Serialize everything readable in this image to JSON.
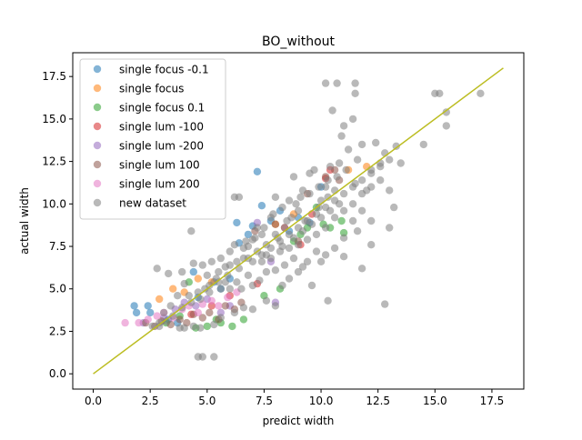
{
  "chart_data": {
    "type": "scatter",
    "title": "BO_without",
    "xlabel": "predict width",
    "ylabel": "actual width",
    "xlim": [
      -0.9,
      18.9
    ],
    "ylim": [
      -0.9,
      18.9
    ],
    "xticks": [
      0,
      2.5,
      5,
      7.5,
      10,
      12.5,
      15,
      17.5
    ],
    "xtick_labels": [
      "0.0",
      "2.5",
      "5.0",
      "7.5",
      "10.0",
      "12.5",
      "15.0",
      "17.5"
    ],
    "yticks": [
      0,
      2.5,
      5,
      7.5,
      10,
      12.5,
      15,
      17.5
    ],
    "ytick_labels": [
      "0.0",
      "2.5",
      "5.0",
      "7.5",
      "10.0",
      "12.5",
      "15.0",
      "17.5"
    ],
    "grid": false,
    "legend_position": "top-left",
    "reference_line": {
      "x": [
        0,
        18
      ],
      "y": [
        0,
        18
      ],
      "color": "#bcbd22"
    },
    "series": [
      {
        "name": "single focus -0.1",
        "color": "#1f77b4",
        "points": [
          [
            1.8,
            4.0
          ],
          [
            1.9,
            3.6
          ],
          [
            2.4,
            4.0
          ],
          [
            2.5,
            3.6
          ],
          [
            3.3,
            3.2
          ],
          [
            3.7,
            3.0
          ],
          [
            4.4,
            6.0
          ],
          [
            4.6,
            4.5
          ],
          [
            5.3,
            5.4
          ],
          [
            5.6,
            5.0
          ],
          [
            6.0,
            5.6
          ],
          [
            6.3,
            8.9
          ],
          [
            6.4,
            7.7
          ],
          [
            6.8,
            8.2
          ],
          [
            7.0,
            8.7
          ],
          [
            7.2,
            11.9
          ],
          [
            7.4,
            9.9
          ],
          [
            7.8,
            9.0
          ],
          [
            8.2,
            9.6
          ],
          [
            8.6,
            8.4
          ],
          [
            9.0,
            9.2
          ],
          [
            9.5,
            8.9
          ],
          [
            10.0,
            11.0
          ]
        ]
      },
      {
        "name": "single focus",
        "color": "#ff7f0e",
        "points": [
          [
            2.9,
            4.4
          ],
          [
            3.5,
            5.0
          ],
          [
            4.0,
            4.8
          ],
          [
            4.6,
            5.6
          ],
          [
            5.2,
            5.4
          ],
          [
            8.0,
            8.8
          ],
          [
            11.2,
            12.0
          ],
          [
            12.0,
            12.2
          ],
          [
            8.8,
            9.4
          ]
        ]
      },
      {
        "name": "single focus 0.1",
        "color": "#2ca02c",
        "points": [
          [
            3.2,
            3.0
          ],
          [
            3.8,
            3.4
          ],
          [
            4.2,
            5.4
          ],
          [
            4.5,
            2.7
          ],
          [
            5.0,
            2.8
          ],
          [
            5.4,
            3.2
          ],
          [
            5.6,
            3.0
          ],
          [
            6.1,
            2.8
          ],
          [
            6.6,
            3.2
          ],
          [
            7.5,
            4.6
          ],
          [
            8.2,
            5.0
          ],
          [
            9.1,
            8.2
          ],
          [
            9.4,
            8.6
          ],
          [
            9.8,
            9.8
          ],
          [
            10.1,
            8.8
          ],
          [
            10.4,
            8.6
          ],
          [
            10.9,
            9.0
          ],
          [
            11.0,
            8.3
          ],
          [
            8.8,
            7.8
          ]
        ]
      },
      {
        "name": "single lum -100",
        "color": "#d62728",
        "points": [
          [
            4.3,
            3.5
          ],
          [
            5.2,
            4.0
          ],
          [
            6.0,
            4.6
          ],
          [
            7.2,
            5.3
          ],
          [
            9.1,
            7.6
          ],
          [
            10.4,
            12.0
          ],
          [
            10.2,
            11.5
          ],
          [
            8.4,
            8.6
          ],
          [
            9.6,
            9.4
          ]
        ]
      },
      {
        "name": "single lum -200",
        "color": "#9467bd",
        "points": [
          [
            2.2,
            3.0
          ],
          [
            3.1,
            3.3
          ],
          [
            3.6,
            3.8
          ],
          [
            4.0,
            4.2
          ],
          [
            4.5,
            4.0
          ],
          [
            5.0,
            4.4
          ],
          [
            5.6,
            3.6
          ],
          [
            6.0,
            4.0
          ],
          [
            7.2,
            8.9
          ],
          [
            8.0,
            4.2
          ],
          [
            7.8,
            6.6
          ]
        ]
      },
      {
        "name": "single lum 100",
        "color": "#8c564b",
        "points": [
          [
            2.3,
            3.0
          ],
          [
            2.7,
            2.8
          ],
          [
            3.0,
            3.1
          ],
          [
            3.4,
            2.9
          ],
          [
            3.8,
            3.2
          ],
          [
            4.1,
            3.0
          ],
          [
            4.4,
            3.5
          ],
          [
            4.8,
            3.3
          ],
          [
            5.1,
            3.6
          ],
          [
            5.5,
            3.2
          ],
          [
            5.8,
            4.0
          ],
          [
            6.2,
            3.8
          ],
          [
            6.5,
            4.2
          ],
          [
            7.1,
            8.4
          ],
          [
            8.0,
            8.8
          ],
          [
            9.0,
            7.8
          ],
          [
            9.4,
            10.6
          ],
          [
            10.2,
            11.6
          ],
          [
            10.6,
            12.0
          ],
          [
            10.8,
            11.4
          ]
        ]
      },
      {
        "name": "single lum 200",
        "color": "#e377c2",
        "points": [
          [
            1.4,
            3.0
          ],
          [
            2.0,
            3.0
          ],
          [
            2.4,
            3.2
          ],
          [
            2.8,
            3.4
          ],
          [
            3.1,
            3.6
          ],
          [
            3.5,
            3.3
          ],
          [
            3.9,
            3.8
          ],
          [
            4.2,
            4.0
          ],
          [
            4.6,
            3.6
          ],
          [
            4.8,
            4.1
          ],
          [
            5.2,
            4.3
          ],
          [
            5.5,
            4.0
          ],
          [
            5.9,
            4.5
          ],
          [
            6.3,
            4.8
          ]
        ]
      },
      {
        "name": "new dataset",
        "color": "#7f7f7f",
        "points": [
          [
            4.6,
            1.0
          ],
          [
            4.8,
            1.0
          ],
          [
            5.3,
            1.0
          ],
          [
            2.8,
            6.2
          ],
          [
            3.3,
            5.9
          ],
          [
            3.9,
            6.0
          ],
          [
            4.3,
            8.4
          ],
          [
            4.4,
            6.5
          ],
          [
            4.8,
            6.4
          ],
          [
            5.0,
            5.8
          ],
          [
            5.2,
            6.6
          ],
          [
            5.5,
            6.0
          ],
          [
            5.8,
            6.3
          ],
          [
            6.0,
            7.2
          ],
          [
            6.2,
            10.4
          ],
          [
            6.4,
            10.4
          ],
          [
            6.6,
            6.8
          ],
          [
            6.8,
            7.5
          ],
          [
            7.0,
            7.9
          ],
          [
            7.2,
            8.6
          ],
          [
            7.4,
            8.2
          ],
          [
            7.6,
            7.0
          ],
          [
            7.8,
            9.2
          ],
          [
            8.0,
            10.4
          ],
          [
            8.1,
            8.0
          ],
          [
            8.3,
            7.5
          ],
          [
            8.5,
            9.0
          ],
          [
            8.6,
            10.2
          ],
          [
            8.8,
            11.6
          ],
          [
            9.0,
            9.6
          ],
          [
            9.2,
            10.8
          ],
          [
            9.3,
            9.0
          ],
          [
            9.5,
            11.8
          ],
          [
            9.7,
            12.0
          ],
          [
            9.9,
            9.8
          ],
          [
            10.0,
            10.2
          ],
          [
            10.2,
            11.0
          ],
          [
            10.3,
            10.4
          ],
          [
            10.4,
            12.2
          ],
          [
            10.5,
            15.5
          ],
          [
            10.6,
            10.8
          ],
          [
            10.8,
            12.4
          ],
          [
            10.9,
            14.0
          ],
          [
            11.0,
            14.6
          ],
          [
            11.2,
            13.2
          ],
          [
            11.4,
            15.0
          ],
          [
            11.5,
            11.2
          ],
          [
            11.6,
            12.6
          ],
          [
            11.8,
            13.5
          ],
          [
            12.0,
            10.8
          ],
          [
            12.2,
            12.0
          ],
          [
            12.4,
            13.6
          ],
          [
            12.6,
            12.4
          ],
          [
            12.8,
            13.0
          ],
          [
            13.0,
            8.6
          ],
          [
            13.2,
            9.8
          ],
          [
            13.3,
            13.4
          ],
          [
            13.5,
            12.4
          ],
          [
            13.0,
            10.8
          ],
          [
            14.5,
            13.5
          ],
          [
            15.0,
            16.5
          ],
          [
            15.2,
            16.5
          ],
          [
            15.5,
            15.4
          ],
          [
            15.5,
            14.6
          ],
          [
            17.0,
            16.5
          ],
          [
            10.2,
            17.1
          ],
          [
            10.7,
            17.1
          ],
          [
            11.5,
            17.1
          ],
          [
            11.5,
            16.5
          ],
          [
            12.8,
            4.1
          ],
          [
            10.3,
            4.3
          ],
          [
            11.0,
            6.9
          ],
          [
            11.8,
            6.2
          ],
          [
            12.2,
            7.6
          ],
          [
            11.6,
            8.4
          ],
          [
            9.6,
            5.2
          ],
          [
            10.0,
            6.6
          ],
          [
            9.2,
            6.3
          ],
          [
            8.8,
            6.8
          ],
          [
            8.4,
            6.4
          ],
          [
            8.0,
            6.1
          ],
          [
            7.6,
            6.0
          ],
          [
            7.3,
            5.5
          ],
          [
            7.0,
            5.2
          ],
          [
            6.8,
            5.8
          ],
          [
            6.5,
            5.0
          ],
          [
            6.3,
            5.4
          ],
          [
            6.0,
            5.0
          ],
          [
            5.8,
            5.4
          ],
          [
            5.6,
            5.0
          ],
          [
            5.4,
            5.6
          ],
          [
            5.1,
            5.2
          ],
          [
            4.9,
            5.0
          ],
          [
            4.6,
            4.8
          ],
          [
            4.2,
            4.6
          ],
          [
            4.0,
            5.3
          ],
          [
            3.7,
            4.6
          ],
          [
            3.4,
            4.0
          ],
          [
            3.1,
            3.6
          ],
          [
            2.9,
            2.8
          ],
          [
            3.8,
            2.7
          ],
          [
            4.0,
            2.7
          ],
          [
            4.4,
            2.8
          ],
          [
            4.7,
            2.7
          ],
          [
            5.3,
            2.9
          ],
          [
            5.6,
            3.3
          ],
          [
            6.2,
            3.6
          ],
          [
            6.6,
            3.9
          ],
          [
            7.0,
            3.8
          ],
          [
            7.6,
            4.3
          ],
          [
            8.0,
            4.0
          ],
          [
            8.3,
            5.2
          ],
          [
            8.6,
            5.6
          ],
          [
            9.0,
            6.0
          ],
          [
            9.4,
            6.6
          ],
          [
            9.8,
            7.2
          ],
          [
            10.2,
            7.0
          ],
          [
            10.6,
            7.4
          ],
          [
            11.0,
            8.0
          ],
          [
            11.4,
            9.0
          ],
          [
            11.8,
            9.6
          ],
          [
            12.2,
            9.0
          ],
          [
            7.4,
            6.6
          ],
          [
            7.8,
            6.8
          ],
          [
            8.2,
            7.2
          ],
          [
            8.6,
            7.4
          ],
          [
            9.0,
            7.6
          ],
          [
            9.4,
            7.9
          ],
          [
            9.8,
            8.2
          ],
          [
            10.2,
            8.6
          ],
          [
            10.6,
            9.2
          ],
          [
            11.0,
            9.6
          ],
          [
            11.4,
            10.0
          ],
          [
            11.8,
            10.6
          ],
          [
            12.2,
            11.0
          ],
          [
            12.6,
            11.4
          ],
          [
            8.4,
            8.6
          ],
          [
            8.8,
            8.0
          ],
          [
            9.2,
            8.4
          ],
          [
            9.6,
            8.8
          ],
          [
            10.0,
            9.2
          ],
          [
            10.4,
            9.6
          ],
          [
            10.8,
            10.0
          ],
          [
            7.2,
            7.2
          ],
          [
            7.6,
            7.6
          ],
          [
            8.0,
            8.2
          ],
          [
            6.8,
            6.8
          ],
          [
            6.4,
            6.2
          ],
          [
            6.0,
            6.4
          ],
          [
            5.6,
            6.8
          ],
          [
            6.2,
            7.6
          ],
          [
            6.6,
            7.4
          ],
          [
            7.0,
            6.6
          ],
          [
            7.4,
            7.0
          ],
          [
            7.8,
            7.4
          ],
          [
            8.2,
            7.8
          ],
          [
            8.6,
            8.2
          ],
          [
            9.0,
            8.6
          ],
          [
            9.4,
            9.0
          ],
          [
            9.8,
            9.4
          ],
          [
            10.2,
            9.8
          ],
          [
            10.6,
            10.2
          ],
          [
            11.0,
            10.6
          ],
          [
            11.4,
            11.0
          ],
          [
            11.8,
            11.4
          ],
          [
            12.2,
            11.8
          ],
          [
            12.6,
            12.2
          ],
          [
            13.0,
            12.6
          ],
          [
            8.9,
            10.0
          ],
          [
            9.1,
            10.4
          ],
          [
            9.5,
            10.6
          ],
          [
            9.9,
            11.0
          ],
          [
            10.3,
            11.4
          ],
          [
            10.7,
            11.6
          ],
          [
            11.1,
            12.0
          ],
          [
            7.9,
            9.4
          ],
          [
            8.3,
            9.8
          ],
          [
            8.7,
            9.2
          ],
          [
            7.5,
            8.6
          ],
          [
            7.1,
            8.0
          ],
          [
            6.7,
            7.8
          ],
          [
            6.3,
            6.6
          ],
          [
            5.9,
            5.8
          ],
          [
            5.5,
            5.4
          ],
          [
            5.1,
            4.8
          ],
          [
            4.7,
            4.4
          ],
          [
            4.3,
            4.2
          ],
          [
            3.9,
            3.9
          ],
          [
            3.5,
            3.4
          ],
          [
            3.2,
            3.1
          ],
          [
            2.9,
            3.0
          ],
          [
            2.6,
            2.8
          ]
        ]
      }
    ]
  }
}
